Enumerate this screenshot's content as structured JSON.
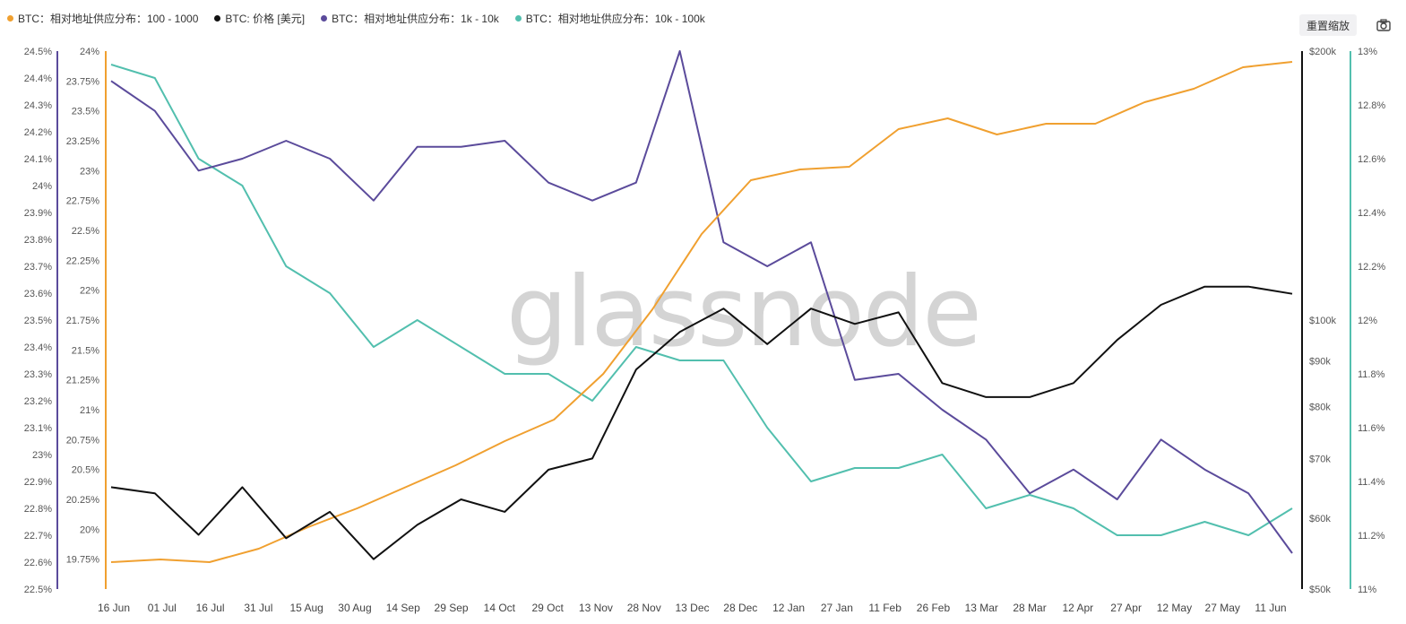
{
  "toolbar": {
    "reset_label": "重置缩放",
    "camera_icon": "camera-icon"
  },
  "watermark": "glassnode",
  "colors": {
    "orange": "#f0a030",
    "black": "#111111",
    "purple": "#5b4b9b",
    "teal": "#52bfae"
  },
  "chart_data": {
    "type": "line",
    "x_ticks": [
      "16 Jun",
      "01 Jul",
      "16 Jul",
      "31 Jul",
      "15 Aug",
      "30 Aug",
      "14 Sep",
      "29 Sep",
      "14 Oct",
      "29 Oct",
      "13 Nov",
      "28 Nov",
      "13 Dec",
      "28 Dec",
      "12 Jan",
      "27 Jan",
      "11 Feb",
      "26 Feb",
      "13 Mar",
      "28 Mar",
      "12 Apr",
      "27 Apr",
      "12 May",
      "27 May",
      "11 Jun"
    ],
    "axes": {
      "orange_axis": {
        "ticks": [
          "24.5%",
          "24.4%",
          "24.3%",
          "24.2%",
          "24.1%",
          "24%",
          "23.9%",
          "23.8%",
          "23.7%",
          "23.6%",
          "23.5%",
          "23.4%",
          "23.3%",
          "23.2%",
          "23.1%",
          "23%",
          "22.9%",
          "22.8%",
          "22.7%",
          "22.6%",
          "22.5%"
        ],
        "ylim": [
          22.5,
          24.5
        ]
      },
      "purple_axis": {
        "ticks": [
          "24%",
          "23.75%",
          "23.5%",
          "23.25%",
          "23%",
          "22.75%",
          "22.5%",
          "22.25%",
          "22%",
          "21.75%",
          "21.5%",
          "21.25%",
          "21%",
          "20.75%",
          "20.5%",
          "20.25%",
          "20%",
          "19.75%",
          "19.5%"
        ],
        "ylim": [
          19.5,
          24
        ]
      },
      "price_axis": {
        "ticks": [
          "$200k",
          "$100k",
          "$90k",
          "$80k",
          "$70k",
          "$60k",
          "$50k"
        ],
        "scale": "log",
        "ylim": [
          50000,
          200000
        ]
      },
      "teal_axis": {
        "ticks": [
          "13%",
          "12.8%",
          "12.6%",
          "12.4%",
          "12.2%",
          "12%",
          "11.8%",
          "11.6%",
          "11.4%",
          "11.2%",
          "11%"
        ],
        "ylim": [
          11.0,
          13.0
        ]
      }
    },
    "series": [
      {
        "name": "BTC：相对地址供应分布：100 - 1000",
        "color": "#f0a030",
        "axis": "orange",
        "values": [
          22.6,
          22.61,
          22.6,
          22.65,
          22.73,
          22.8,
          22.88,
          22.96,
          23.05,
          23.13,
          23.3,
          23.54,
          23.82,
          24.02,
          24.06,
          24.07,
          24.21,
          24.25,
          24.19,
          24.23,
          24.23,
          24.31,
          24.36,
          24.44,
          24.46
        ]
      },
      {
        "name": "BTC: 价格 [美元]",
        "color": "#111111",
        "axis": "price",
        "values": [
          65000,
          64000,
          57500,
          65000,
          57000,
          61000,
          54000,
          59000,
          63000,
          61000,
          68000,
          70000,
          88000,
          97000,
          103000,
          94000,
          103000,
          99000,
          102000,
          85000,
          82000,
          82000,
          85000,
          95000,
          104000,
          109000,
          109000,
          107000
        ]
      },
      {
        "name": "BTC：相对地址供应分布：1k - 10k",
        "color": "#5b4b9b",
        "axis": "purple",
        "values": [
          23.75,
          23.5,
          23.0,
          23.1,
          23.25,
          23.1,
          22.75,
          23.2,
          23.2,
          23.25,
          22.9,
          22.75,
          22.9,
          24.0,
          22.4,
          22.2,
          22.4,
          21.25,
          21.3,
          21.0,
          20.75,
          20.3,
          20.5,
          20.25,
          20.75,
          20.5,
          20.3,
          19.8
        ]
      },
      {
        "name": "BTC：相对地址供应分布：10k - 100k",
        "color": "#52bfae",
        "axis": "teal",
        "values": [
          12.95,
          12.9,
          12.6,
          12.5,
          12.2,
          12.1,
          11.9,
          12.0,
          11.9,
          11.8,
          11.8,
          11.7,
          11.9,
          11.85,
          11.85,
          11.6,
          11.4,
          11.45,
          11.45,
          11.5,
          11.3,
          11.35,
          11.3,
          11.2,
          11.2,
          11.25,
          11.2,
          11.3
        ]
      }
    ]
  }
}
